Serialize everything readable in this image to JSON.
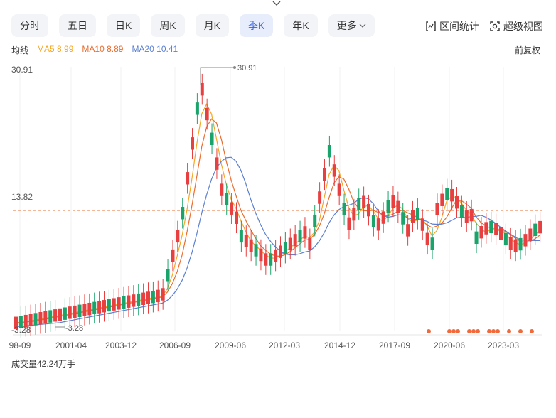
{
  "tabs": [
    "分时",
    "五日",
    "日K",
    "周K",
    "月K",
    "季K",
    "年K",
    "更多"
  ],
  "active_tab": "季K",
  "tools": [
    {
      "icon": "range-stats-icon",
      "label": "区间统计"
    },
    {
      "icon": "super-view-icon",
      "label": "超级视图"
    }
  ],
  "ma": {
    "prefix": "均线",
    "items": [
      {
        "label": "MA5",
        "value": "8.99",
        "color": "#f5a623"
      },
      {
        "label": "MA10",
        "value": "8.89",
        "color": "#ea6d2f"
      },
      {
        "label": "MA20",
        "value": "10.41",
        "color": "#5b7fd1"
      }
    ]
  },
  "adjust": "前复权",
  "price_axis": {
    "top": "30.91",
    "mid": "13.82",
    "bottom": "-3.28"
  },
  "annotations": {
    "high": "30.91",
    "low": "-3.28",
    "current_line": 13.82
  },
  "x_labels": [
    "98-09",
    "2001-04",
    "2003-12",
    "2006-09",
    "2009-06",
    "2012-03",
    "2014-12",
    "2017-09",
    "2020-06",
    "2023-03"
  ],
  "volume": {
    "label": "成交量42.24万手"
  },
  "colors": {
    "up": "#e84040",
    "down": "#1aa36a",
    "ma5": "#f5a623",
    "ma10": "#ea6d2f",
    "ma20": "#5b7fd1",
    "active": "#3461dc"
  }
}
